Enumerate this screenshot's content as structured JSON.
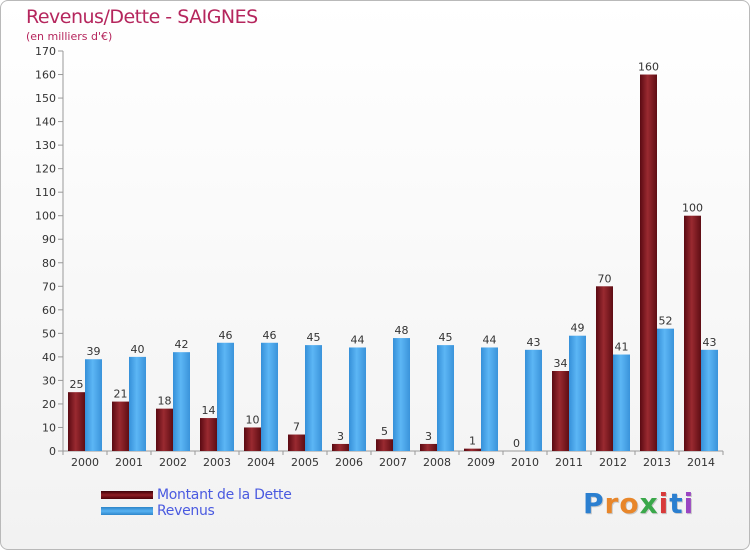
{
  "title": "Revenus/Dette - SAIGNES",
  "subtitle": "(en milliers d'€)",
  "legend": {
    "debt_label": "Montant de la Dette",
    "revenue_label": "Revenus"
  },
  "logo_text": "Proxiti",
  "colors": {
    "debt": "#8e1e24",
    "revenue": "#4aa5ee",
    "title": "#b5265d",
    "legend_text": "#4a5ae0"
  },
  "chart_data": {
    "type": "bar",
    "categories": [
      "2000",
      "2001",
      "2002",
      "2003",
      "2004",
      "2005",
      "2006",
      "2007",
      "2008",
      "2009",
      "2010",
      "2011",
      "2012",
      "2013",
      "2014"
    ],
    "series": [
      {
        "name": "Montant de la Dette",
        "values": [
          25,
          21,
          18,
          14,
          10,
          7,
          3,
          5,
          3,
          1,
          0,
          34,
          70,
          160,
          100
        ]
      },
      {
        "name": "Revenus",
        "values": [
          39,
          40,
          42,
          46,
          46,
          45,
          44,
          48,
          45,
          44,
          43,
          49,
          41,
          52,
          43
        ]
      }
    ],
    "yticks": [
      0,
      10,
      20,
      30,
      40,
      50,
      60,
      70,
      80,
      90,
      100,
      110,
      120,
      130,
      140,
      150,
      160,
      170
    ],
    "ylim": [
      0,
      170
    ],
    "grid": false,
    "legend_position": "bottom-left"
  }
}
